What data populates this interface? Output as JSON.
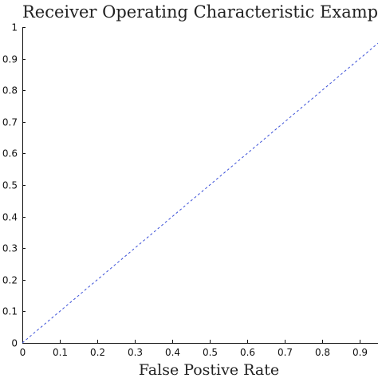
{
  "chart_data": {
    "type": "line",
    "title": "Receiver Operating Characteristic Example",
    "xlabel": "False Postive Rate",
    "ylabel": "",
    "xlim": [
      0,
      1
    ],
    "ylim": [
      0,
      1
    ],
    "x_ticks": [
      "0",
      "0.1",
      "0.2",
      "0.3",
      "0.4",
      "0.5",
      "0.6",
      "0.7",
      "0.8",
      "0.9"
    ],
    "y_ticks": [
      "0",
      "0.1",
      "0.2",
      "0.3",
      "0.4",
      "0.5",
      "0.6",
      "0.7",
      "0.8",
      "0.9",
      "1"
    ],
    "grid": false,
    "legend": "none",
    "series": [
      {
        "style": "dashed",
        "color": "#3b50d8",
        "x": [
          0,
          1
        ],
        "y": [
          0,
          1
        ]
      }
    ]
  }
}
